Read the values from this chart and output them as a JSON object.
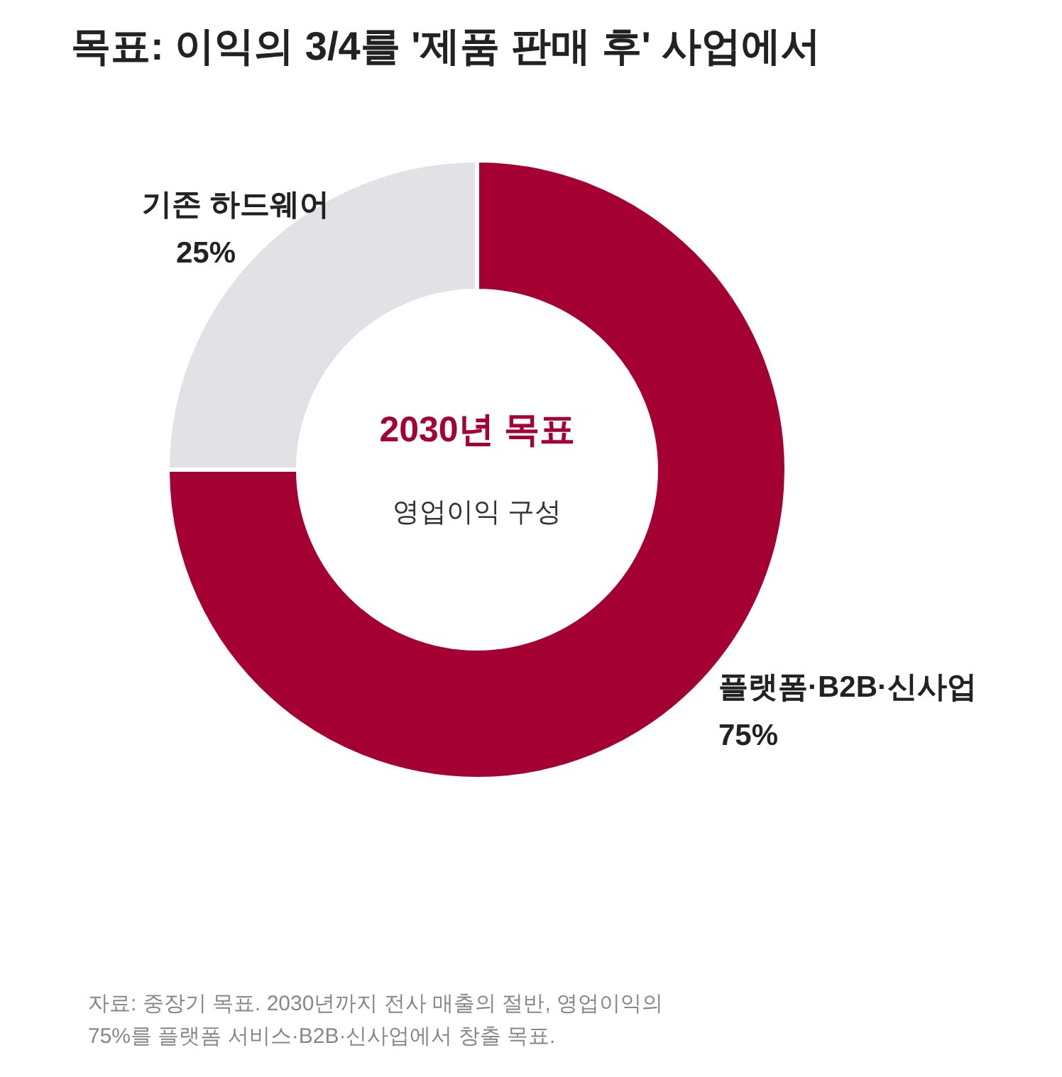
{
  "chart_data": {
    "type": "donut",
    "title": "목표: 이익의 3/4를 '제품 판매 후' 사업에서",
    "categories": [
      "플랫폼·B2B·신사업",
      "기존 하드웨어"
    ],
    "values": [
      75,
      25
    ],
    "colors": [
      "#a50034",
      "#e2e1e5"
    ],
    "value_labels": [
      "75%",
      "25%"
    ],
    "annotations": [
      "2030년 목표",
      "영업이익 구성",
      "자료: 중장기 목표. 2030년까지 전사 매출의 절반, 영업이익의 75%를 플랫폼 서비스·B2B·신사업에서 창출 목표."
    ]
  }
}
